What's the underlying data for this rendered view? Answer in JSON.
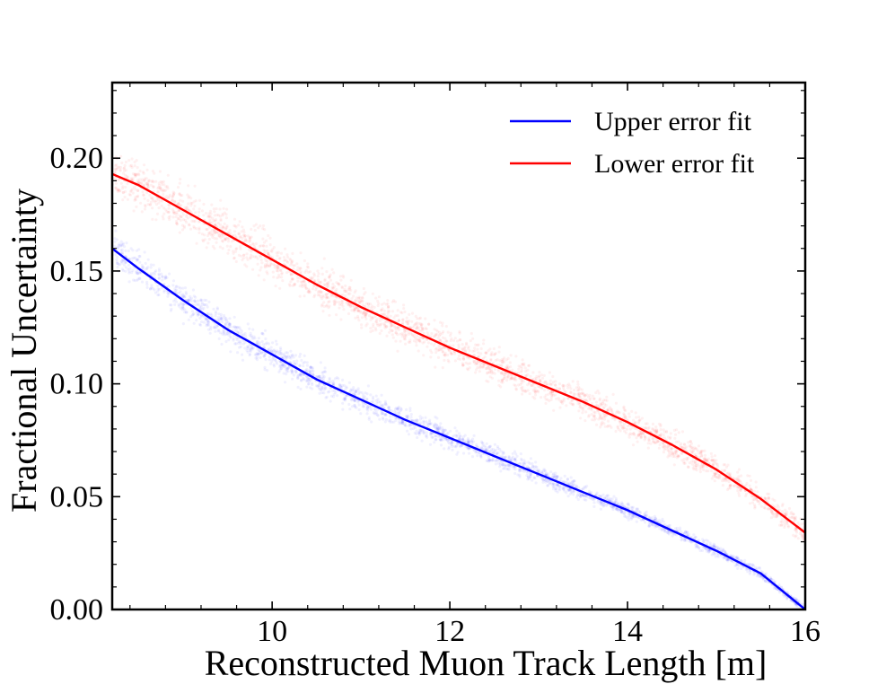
{
  "chart_data": {
    "type": "line",
    "title": "",
    "xlabel": "Reconstructed Muon Track Length [m]",
    "ylabel": "Fractional Uncertainty",
    "xlim": [
      8.2,
      16.0
    ],
    "ylim": [
      0.0,
      0.2335
    ],
    "x_ticks": [
      10,
      12,
      14,
      16
    ],
    "x_tick_labels": [
      "10",
      "12",
      "14",
      "16"
    ],
    "y_ticks": [
      0.0,
      0.05,
      0.1,
      0.15,
      0.2
    ],
    "y_tick_labels": [
      "0.00",
      "0.05",
      "0.10",
      "0.15",
      "0.20"
    ],
    "grid": false,
    "legend_position": "top-right",
    "series": [
      {
        "name": "Upper error fit",
        "color": "#0000ff",
        "x": [
          8.2,
          8.5,
          9.0,
          9.5,
          10.0,
          10.5,
          11.0,
          11.5,
          12.0,
          12.5,
          13.0,
          13.5,
          14.0,
          14.5,
          15.0,
          15.5,
          16.0
        ],
        "y": [
          0.16,
          0.151,
          0.137,
          0.124,
          0.113,
          0.102,
          0.093,
          0.084,
          0.076,
          0.068,
          0.06,
          0.052,
          0.044,
          0.035,
          0.026,
          0.016,
          0.0
        ]
      },
      {
        "name": "Lower error fit",
        "color": "#ff0000",
        "x": [
          8.2,
          8.5,
          9.0,
          9.5,
          10.0,
          10.5,
          11.0,
          11.5,
          12.0,
          12.5,
          13.0,
          13.5,
          14.0,
          14.5,
          15.0,
          15.5,
          16.0
        ],
        "y": [
          0.193,
          0.188,
          0.177,
          0.166,
          0.155,
          0.144,
          0.134,
          0.125,
          0.116,
          0.108,
          0.1,
          0.092,
          0.083,
          0.073,
          0.062,
          0.049,
          0.034
        ]
      }
    ],
    "scatter_bands": [
      {
        "color": "#0000ff",
        "follows": "Upper error fit",
        "spread_start": 0.01,
        "spread_end": 0.002,
        "alpha": 0.06
      },
      {
        "color": "#ff0000",
        "follows": "Lower error fit",
        "spread_start": 0.014,
        "spread_end": 0.006,
        "alpha": 0.06
      }
    ]
  }
}
